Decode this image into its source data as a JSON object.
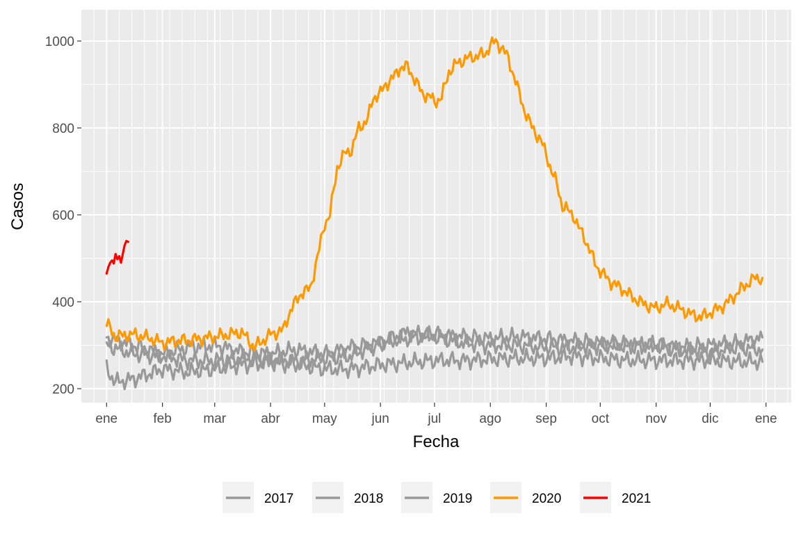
{
  "chart_data": {
    "type": "line",
    "title": "",
    "xlabel": "Fecha",
    "ylabel": "Casos",
    "x_unit": "day_of_year",
    "xlim": [
      -14,
      380
    ],
    "ylim": [
      168,
      1072
    ],
    "x_ticks": [
      {
        "day": 0,
        "label": "ene"
      },
      {
        "day": 31,
        "label": "feb"
      },
      {
        "day": 60,
        "label": "mar"
      },
      {
        "day": 91,
        "label": "abr"
      },
      {
        "day": 121,
        "label": "may"
      },
      {
        "day": 152,
        "label": "jun"
      },
      {
        "day": 182,
        "label": "jul"
      },
      {
        "day": 213,
        "label": "ago"
      },
      {
        "day": 244,
        "label": "sep"
      },
      {
        "day": 274,
        "label": "oct"
      },
      {
        "day": 305,
        "label": "nov"
      },
      {
        "day": 335,
        "label": "dic"
      },
      {
        "day": 366,
        "label": "ene"
      }
    ],
    "y_ticks": [
      200,
      400,
      600,
      800,
      1000
    ],
    "grid": true,
    "legend_position": "bottom",
    "series": [
      {
        "name": "2017",
        "color": "#999999",
        "points": [
          [
            0,
            318
          ],
          [
            15,
            300
          ],
          [
            31,
            280
          ],
          [
            45,
            295
          ],
          [
            60,
            300
          ],
          [
            75,
            285
          ],
          [
            91,
            280
          ],
          [
            105,
            290
          ],
          [
            121,
            280
          ],
          [
            135,
            295
          ],
          [
            152,
            305
          ],
          [
            167,
            315
          ],
          [
            182,
            325
          ],
          [
            198,
            320
          ],
          [
            213,
            315
          ],
          [
            228,
            320
          ],
          [
            244,
            315
          ],
          [
            259,
            310
          ],
          [
            274,
            305
          ],
          [
            289,
            300
          ],
          [
            305,
            300
          ],
          [
            320,
            295
          ],
          [
            335,
            300
          ],
          [
            350,
            305
          ],
          [
            364,
            318
          ]
        ]
      },
      {
        "name": "2018",
        "color": "#999999",
        "points": [
          [
            0,
            245
          ],
          [
            5,
            215
          ],
          [
            15,
            222
          ],
          [
            31,
            245
          ],
          [
            45,
            238
          ],
          [
            60,
            245
          ],
          [
            75,
            255
          ],
          [
            91,
            260
          ],
          [
            105,
            255
          ],
          [
            121,
            245
          ],
          [
            135,
            245
          ],
          [
            152,
            255
          ],
          [
            167,
            260
          ],
          [
            182,
            265
          ],
          [
            198,
            265
          ],
          [
            213,
            268
          ],
          [
            228,
            270
          ],
          [
            244,
            270
          ],
          [
            259,
            275
          ],
          [
            274,
            270
          ],
          [
            289,
            265
          ],
          [
            305,
            265
          ],
          [
            320,
            265
          ],
          [
            335,
            265
          ],
          [
            350,
            262
          ],
          [
            364,
            262
          ]
        ]
      },
      {
        "name": "2019",
        "color": "#999999",
        "points": [
          [
            0,
            300
          ],
          [
            15,
            280
          ],
          [
            31,
            275
          ],
          [
            45,
            265
          ],
          [
            60,
            265
          ],
          [
            75,
            270
          ],
          [
            91,
            270
          ],
          [
            105,
            265
          ],
          [
            121,
            270
          ],
          [
            135,
            275
          ],
          [
            152,
            305
          ],
          [
            167,
            330
          ],
          [
            182,
            320
          ],
          [
            198,
            305
          ],
          [
            213,
            300
          ],
          [
            228,
            300
          ],
          [
            244,
            295
          ],
          [
            259,
            295
          ],
          [
            274,
            300
          ],
          [
            289,
            300
          ],
          [
            305,
            300
          ],
          [
            320,
            290
          ],
          [
            335,
            285
          ],
          [
            350,
            295
          ],
          [
            364,
            290
          ]
        ]
      },
      {
        "name": "2020",
        "color": "#FF9900",
        "points": [
          [
            0,
            350
          ],
          [
            5,
            320
          ],
          [
            15,
            325
          ],
          [
            25,
            315
          ],
          [
            31,
            305
          ],
          [
            38,
            310
          ],
          [
            45,
            312
          ],
          [
            52,
            315
          ],
          [
            60,
            320
          ],
          [
            68,
            325
          ],
          [
            75,
            330
          ],
          [
            82,
            295
          ],
          [
            91,
            325
          ],
          [
            98,
            335
          ],
          [
            102,
            380
          ],
          [
            108,
            420
          ],
          [
            113,
            430
          ],
          [
            118,
            520
          ],
          [
            121,
            580
          ],
          [
            124,
            600
          ],
          [
            128,
            710
          ],
          [
            132,
            740
          ],
          [
            136,
            750
          ],
          [
            140,
            800
          ],
          [
            145,
            820
          ],
          [
            148,
            870
          ],
          [
            152,
            880
          ],
          [
            155,
            900
          ],
          [
            160,
            920
          ],
          [
            163,
            940
          ],
          [
            167,
            940
          ],
          [
            170,
            920
          ],
          [
            175,
            880
          ],
          [
            180,
            870
          ],
          [
            182,
            860
          ],
          [
            186,
            870
          ],
          [
            190,
            930
          ],
          [
            195,
            950
          ],
          [
            200,
            960
          ],
          [
            205,
            965
          ],
          [
            210,
            970
          ],
          [
            213,
            990
          ],
          [
            216,
            1000
          ],
          [
            220,
            980
          ],
          [
            223,
            960
          ],
          [
            226,
            920
          ],
          [
            229,
            880
          ],
          [
            232,
            840
          ],
          [
            235,
            810
          ],
          [
            238,
            790
          ],
          [
            241,
            770
          ],
          [
            244,
            740
          ],
          [
            247,
            700
          ],
          [
            250,
            670
          ],
          [
            253,
            620
          ],
          [
            256,
            610
          ],
          [
            259,
            600
          ],
          [
            262,
            570
          ],
          [
            265,
            550
          ],
          [
            268,
            520
          ],
          [
            271,
            490
          ],
          [
            274,
            470
          ],
          [
            280,
            445
          ],
          [
            286,
            430
          ],
          [
            292,
            410
          ],
          [
            298,
            395
          ],
          [
            305,
            385
          ],
          [
            310,
            395
          ],
          [
            315,
            390
          ],
          [
            320,
            380
          ],
          [
            325,
            370
          ],
          [
            330,
            365
          ],
          [
            335,
            375
          ],
          [
            340,
            385
          ],
          [
            345,
            400
          ],
          [
            350,
            420
          ],
          [
            355,
            440
          ],
          [
            360,
            455
          ],
          [
            364,
            455
          ]
        ]
      },
      {
        "name": "2021",
        "color": "#FF0000",
        "points": [
          [
            0,
            465
          ],
          [
            1,
            480
          ],
          [
            2,
            490
          ],
          [
            3,
            495
          ],
          [
            4,
            488
          ],
          [
            5,
            510
          ],
          [
            6,
            498
          ],
          [
            7,
            505
          ],
          [
            8,
            490
          ],
          [
            9,
            510
          ],
          [
            10,
            530
          ],
          [
            11,
            540
          ],
          [
            12,
            538
          ]
        ]
      }
    ]
  }
}
